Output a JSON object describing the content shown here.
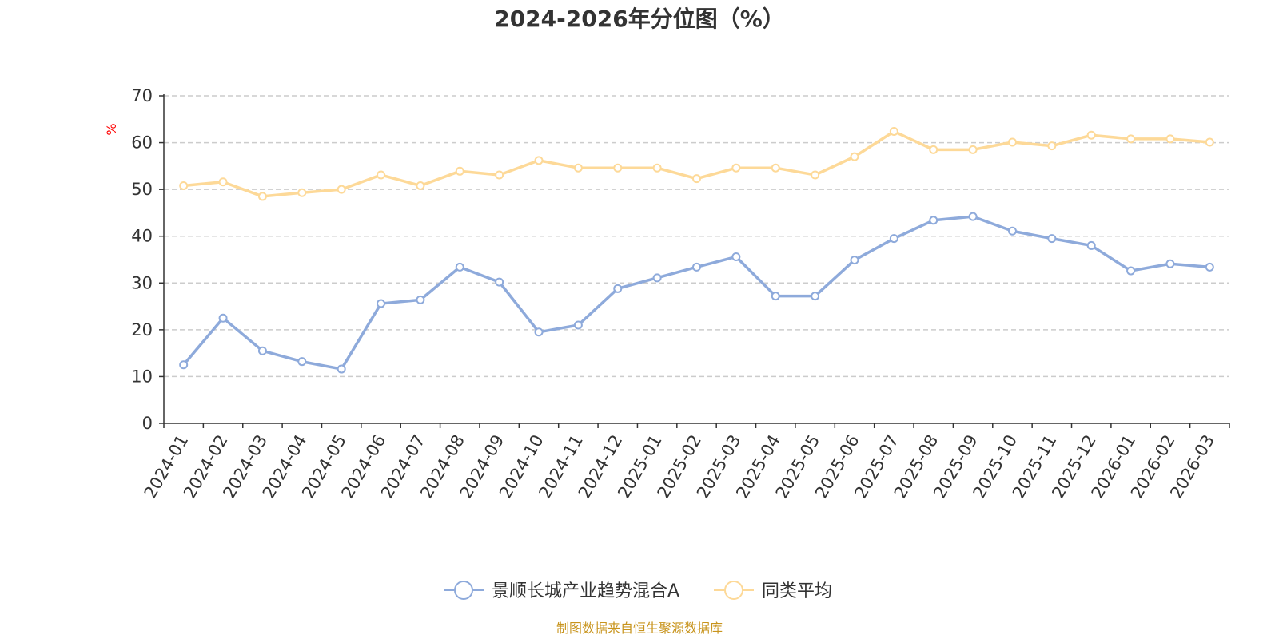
{
  "chart_data": {
    "type": "line",
    "title": "2024-2026年分位图（%）",
    "ylabel": "%",
    "xlabel": "",
    "ylim": [
      0,
      70
    ],
    "yticks": [
      0,
      10,
      20,
      30,
      40,
      50,
      60,
      70
    ],
    "grid": true,
    "legend_position": "bottom-center",
    "categories": [
      "2024-01",
      "2024-02",
      "2024-03",
      "2024-04",
      "2024-05",
      "2024-06",
      "2024-07",
      "2024-08",
      "2024-09",
      "2024-10",
      "2024-11",
      "2024-12",
      "2025-01",
      "2025-02",
      "2025-03",
      "2025-04",
      "2025-05",
      "2025-06",
      "2025-07",
      "2025-08",
      "2025-09",
      "2025-10",
      "2025-11",
      "2025-12",
      "2026-01",
      "2026-02",
      "2026-03"
    ],
    "series": [
      {
        "name": "景顺长城产业趋势混合A",
        "color": "#8eaadb",
        "values": [
          12.5,
          22.5,
          15.5,
          13.2,
          11.6,
          25.6,
          26.4,
          33.4,
          30.2,
          19.5,
          21.0,
          28.8,
          31.1,
          33.4,
          35.6,
          27.2,
          27.2,
          34.9,
          39.5,
          43.4,
          44.2,
          41.1,
          39.5,
          38.0,
          32.6,
          34.1,
          33.4
        ]
      },
      {
        "name": "同类平均",
        "color": "#fdd998",
        "values": [
          50.8,
          51.6,
          48.5,
          49.3,
          50.0,
          53.1,
          50.8,
          53.9,
          53.1,
          56.2,
          54.6,
          54.6,
          54.6,
          52.3,
          54.6,
          54.6,
          53.1,
          57.0,
          62.4,
          58.5,
          58.5,
          60.1,
          59.3,
          61.6,
          60.8,
          60.8,
          60.1
        ]
      }
    ]
  },
  "source_note": "制图数据来自恒生聚源数据库"
}
